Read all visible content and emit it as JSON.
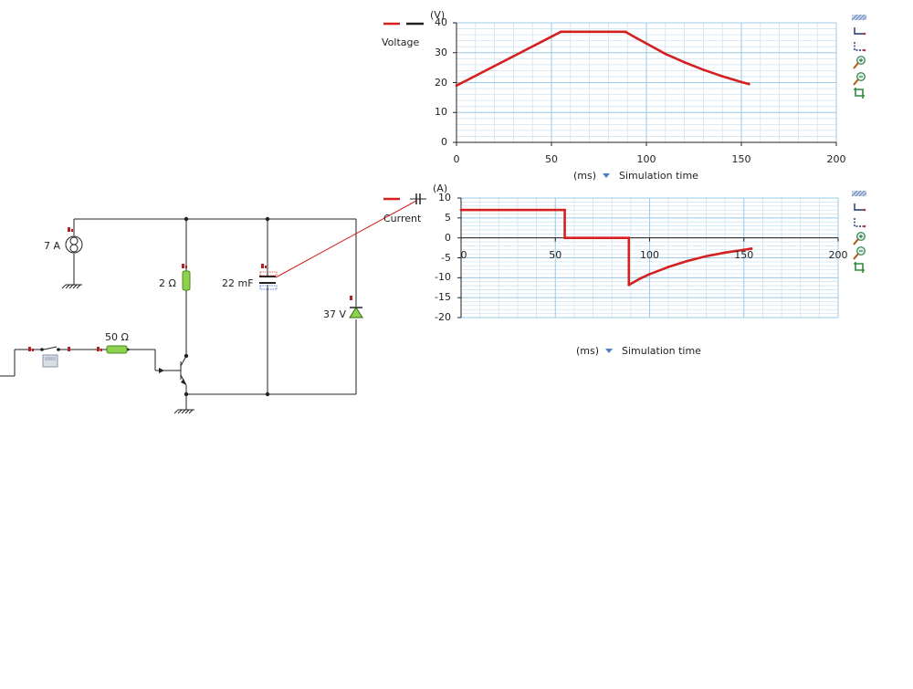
{
  "circuit": {
    "current_source_label": "7 A",
    "resistor1_label": "2 Ω",
    "resistor2_label": "50 Ω",
    "capacitor_label": "22 mF",
    "zener_label": "37 V"
  },
  "toolbar_icons": [
    "hatch-pattern-icon",
    "step-plot-icon",
    "step-plot-dashed-icon",
    "zoom-in-icon",
    "zoom-out-icon",
    "fit-view-icon"
  ],
  "chart_data": [
    {
      "type": "line",
      "legend": "Voltage",
      "y_unit": "(V)",
      "x_unit": "(ms)",
      "x_selector": "Simulation time",
      "xlim": [
        0,
        200
      ],
      "ylim": [
        0,
        40
      ],
      "x_ticks": [
        0,
        50,
        100,
        150,
        200
      ],
      "y_ticks": [
        0,
        10,
        20,
        30,
        40
      ],
      "grid": true,
      "series_color": "#d42020",
      "x": [
        0,
        55,
        89,
        95,
        100,
        110,
        120,
        130,
        140,
        150,
        154
      ],
      "y": [
        19,
        37,
        37,
        34.8,
        33.1,
        29.6,
        26.8,
        24.3,
        22.1,
        20.2,
        19.5
      ]
    },
    {
      "type": "line",
      "legend": "Current",
      "y_unit": "(A)",
      "x_unit": "(ms)",
      "x_selector": "Simulation time",
      "xlim": [
        0,
        200
      ],
      "ylim": [
        -20,
        10
      ],
      "x_ticks": [
        0,
        50,
        100,
        150,
        200
      ],
      "y_ticks": [
        -20,
        -15,
        -10,
        -5,
        0,
        5,
        10
      ],
      "grid": true,
      "series_color": "#d42020",
      "x": [
        0,
        55,
        55,
        89,
        89,
        95,
        100,
        110,
        120,
        130,
        140,
        150,
        154
      ],
      "y": [
        7,
        7,
        0,
        0,
        -11.8,
        -10.2,
        -9.1,
        -7.3,
        -5.8,
        -4.6,
        -3.7,
        -3.0,
        -2.7
      ]
    }
  ]
}
